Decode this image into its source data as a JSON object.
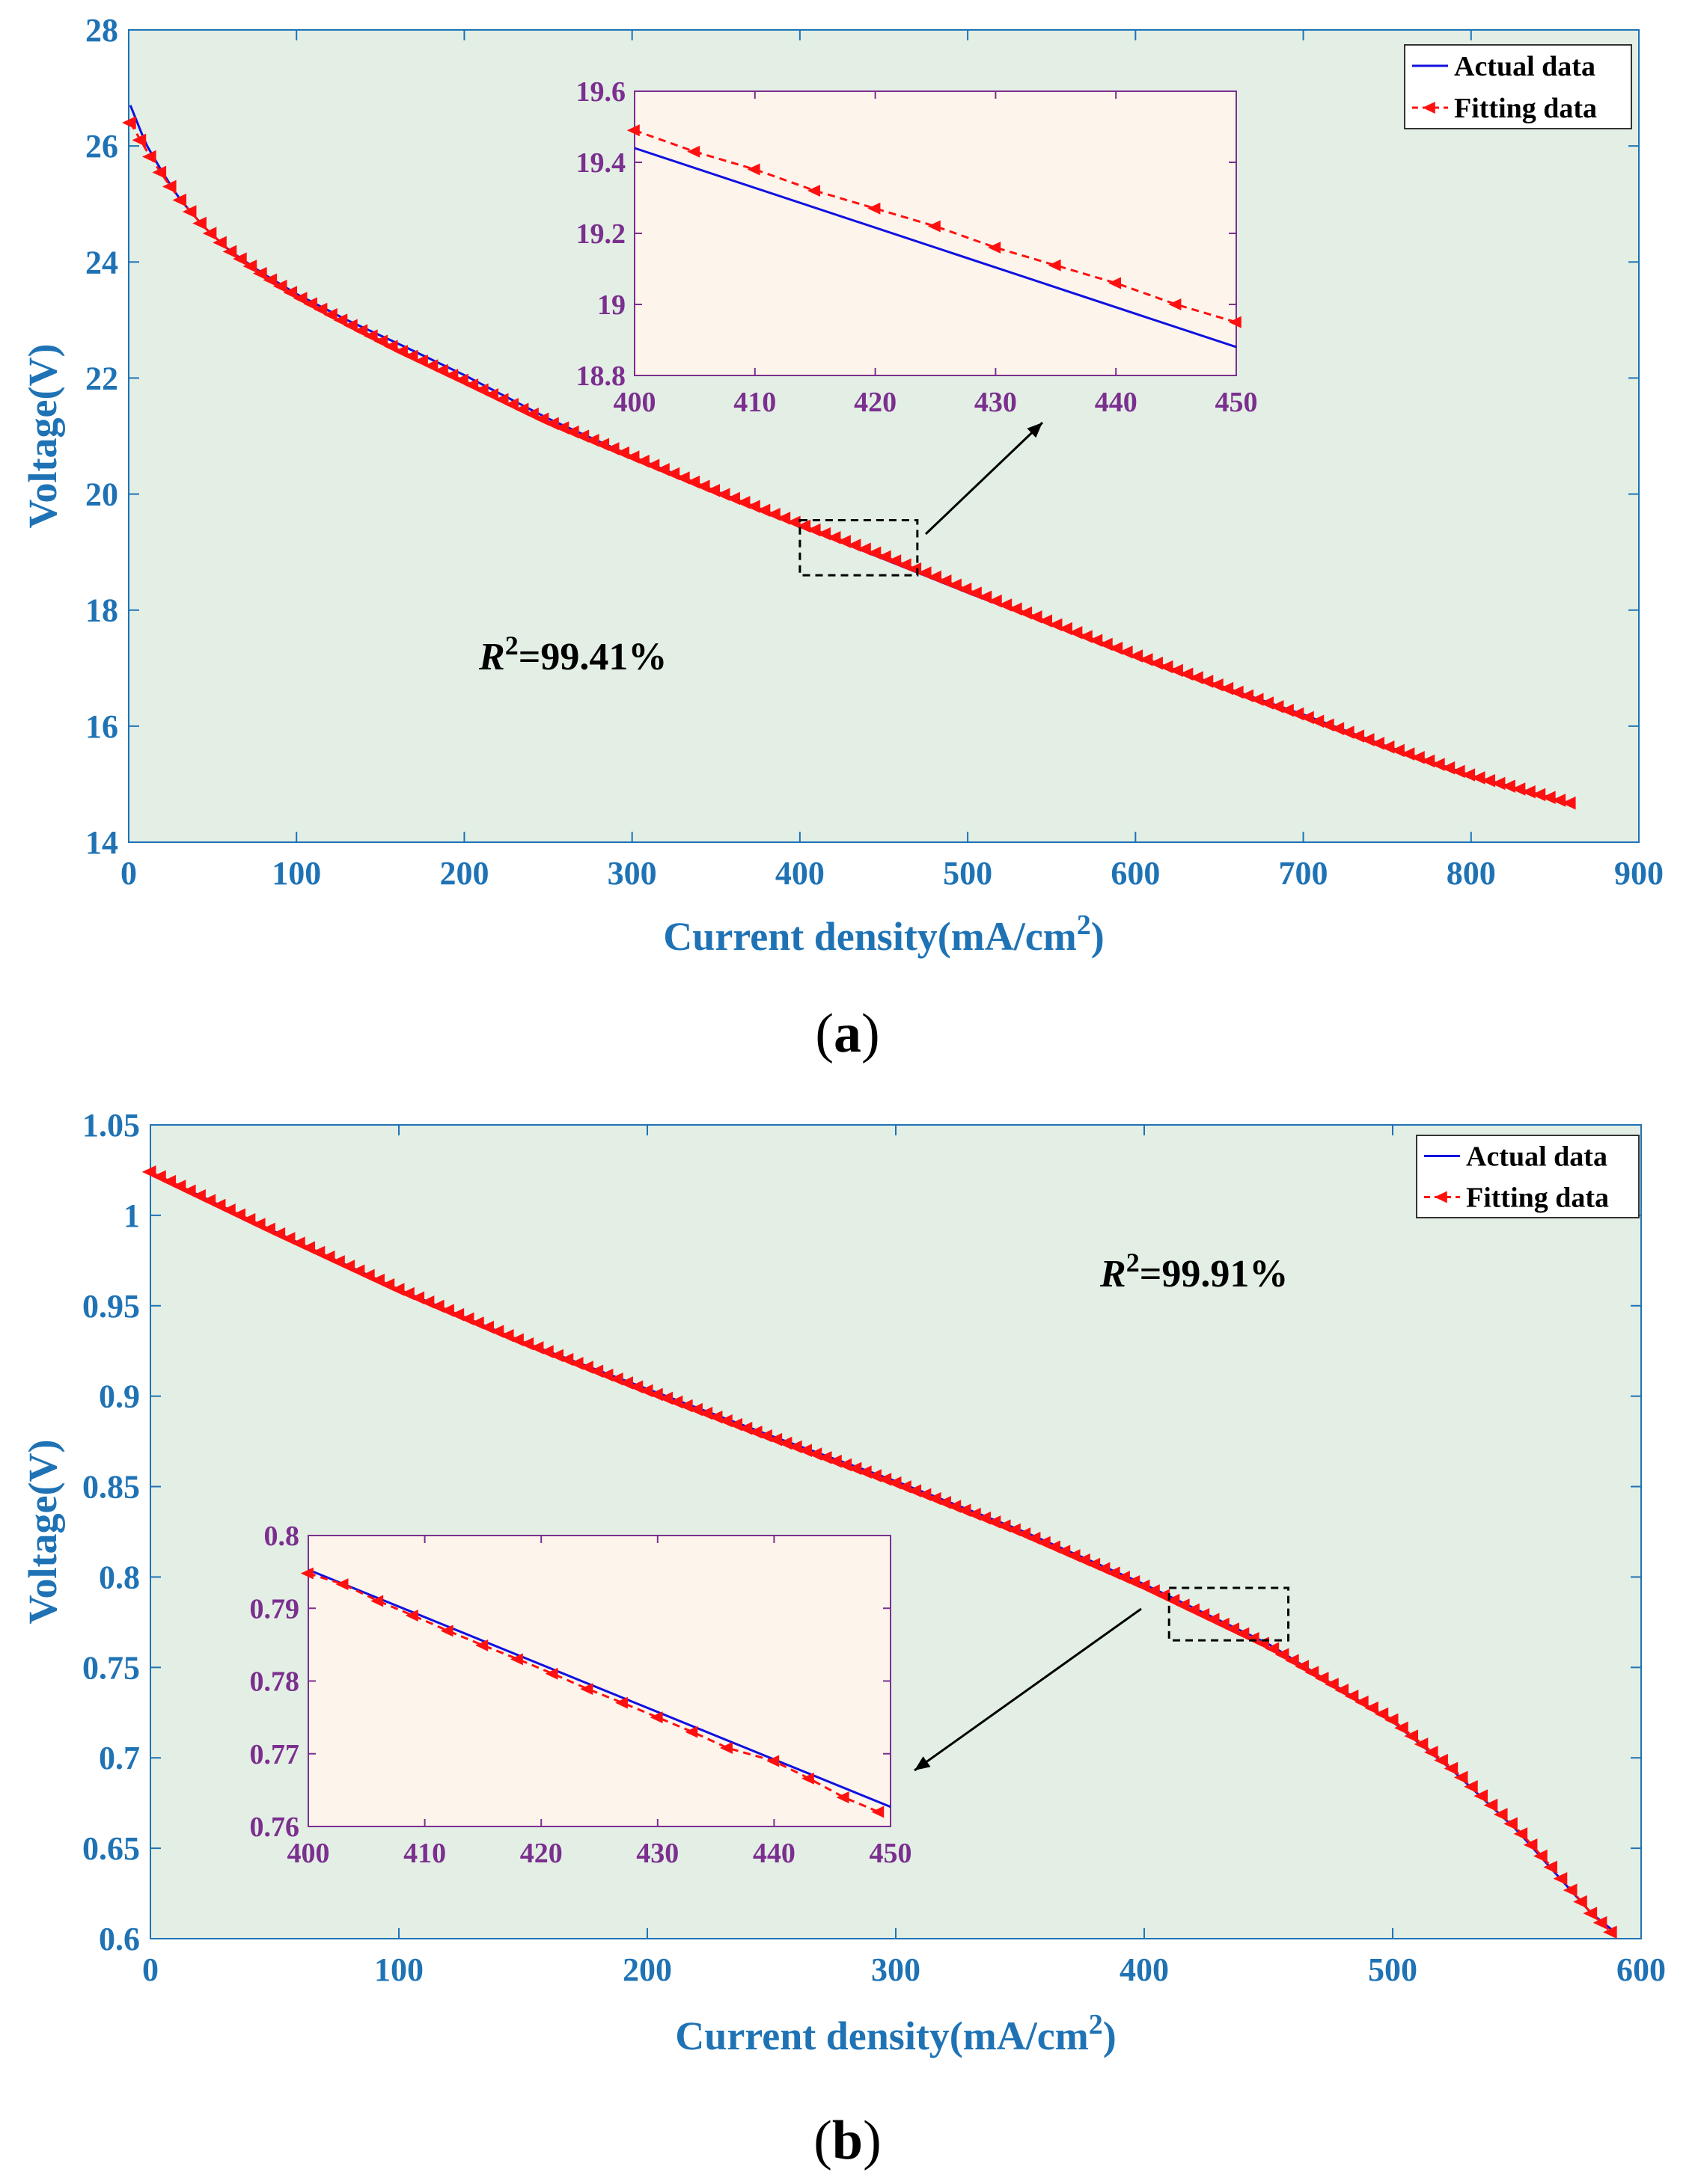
{
  "colors": {
    "axis_label": "#1f73b5",
    "main_bg": "#e3efe5",
    "inset_bg": "#fdf5ec",
    "inset_tick": "#7b2f8e",
    "inset_frame": "#7b2f8e",
    "actual": "#1010e0",
    "fitting": "#ff1010"
  },
  "captions": {
    "a": "a",
    "b": "b"
  },
  "chart_data": [
    {
      "id": "a",
      "type": "line",
      "xlabel": "Current density(mA/cm",
      "xlabel_sup": "2",
      "xlabel_end": ")",
      "ylabel": "Voltage(V)",
      "xlim": [
        0,
        900
      ],
      "ylim": [
        14,
        28
      ],
      "xticks": [
        "0",
        "100",
        "200",
        "300",
        "400",
        "500",
        "600",
        "700",
        "800",
        "900"
      ],
      "yticks": [
        "14",
        "16",
        "18",
        "20",
        "22",
        "24",
        "26",
        "28"
      ],
      "annotation": {
        "prefix": "R",
        "sup": "2",
        "text": "=99.41%"
      },
      "legend": {
        "placement": "top-right",
        "entries": [
          "Actual data",
          "Fitting data"
        ]
      },
      "series": [
        {
          "name": "Actual data",
          "style": "solid",
          "x": [
            1,
            10,
            20,
            30,
            45,
            60,
            80,
            100,
            130,
            160,
            200,
            250,
            300,
            350,
            400,
            450,
            500,
            550,
            600,
            650,
            700,
            750,
            800,
            862
          ],
          "y": [
            26.7,
            26.05,
            25.55,
            25.1,
            24.6,
            24.2,
            23.8,
            23.45,
            23.0,
            22.6,
            22.05,
            21.3,
            20.65,
            20.05,
            19.45,
            18.88,
            18.3,
            17.75,
            17.2,
            16.7,
            16.2,
            15.65,
            15.15,
            14.65
          ]
        },
        {
          "name": "Fitting data",
          "style": "dashed-triangle",
          "x": [
            1,
            10,
            20,
            30,
            45,
            60,
            80,
            100,
            130,
            160,
            200,
            250,
            300,
            350,
            400,
            450,
            500,
            550,
            600,
            650,
            700,
            750,
            800,
            862
          ],
          "y": [
            26.4,
            25.95,
            25.5,
            25.1,
            24.6,
            24.2,
            23.78,
            23.42,
            22.95,
            22.5,
            21.95,
            21.25,
            20.65,
            20.05,
            19.48,
            18.93,
            18.35,
            17.78,
            17.22,
            16.7,
            16.18,
            15.65,
            15.15,
            14.65
          ]
        }
      ],
      "zoom_box": {
        "x": [
          400,
          470
        ],
        "y": [
          18.6,
          19.55
        ]
      },
      "inset": {
        "xlim": [
          400,
          450
        ],
        "ylim": [
          18.8,
          19.6
        ],
        "xticks": [
          "400",
          "410",
          "420",
          "430",
          "440",
          "450"
        ],
        "yticks": [
          "18.8",
          "19",
          "19.2",
          "19.4",
          "19.6"
        ],
        "series": [
          {
            "name": "Actual data",
            "x": [
              400,
              450
            ],
            "y": [
              19.44,
              18.88
            ]
          },
          {
            "name": "Fitting data",
            "x": [
              400,
              405,
              410,
              415,
              420,
              425,
              430,
              435,
              440,
              445,
              450
            ],
            "y": [
              19.49,
              19.43,
              19.38,
              19.32,
              19.27,
              19.22,
              19.16,
              19.11,
              19.06,
              19.0,
              18.95
            ]
          }
        ]
      }
    },
    {
      "id": "b",
      "type": "line",
      "xlabel": "Current density(mA/cm",
      "xlabel_sup": "2",
      "xlabel_end": ")",
      "ylabel": "Voltage(V)",
      "xlim": [
        0,
        600
      ],
      "ylim": [
        0.6,
        1.05
      ],
      "xticks": [
        "0",
        "100",
        "200",
        "300",
        "400",
        "500",
        "600"
      ],
      "yticks": [
        "0.6",
        "0.65",
        "0.7",
        "0.75",
        "0.8",
        "0.85",
        "0.9",
        "0.95",
        "1",
        "1.05"
      ],
      "annotation": {
        "prefix": "R",
        "sup": "2",
        "text": "=99.91%"
      },
      "legend": {
        "placement": "top-right",
        "entries": [
          "Actual data",
          "Fitting data"
        ]
      },
      "series": [
        {
          "name": "Actual data",
          "style": "solid",
          "x": [
            0,
            50,
            100,
            150,
            200,
            250,
            300,
            350,
            400,
            450,
            500,
            525,
            550,
            565,
            580,
            590
          ],
          "y": [
            1.024,
            0.991,
            0.959,
            0.93,
            0.904,
            0.878,
            0.853,
            0.826,
            0.796,
            0.763,
            0.72,
            0.692,
            0.66,
            0.637,
            0.614,
            0.603
          ]
        },
        {
          "name": "Fitting data",
          "style": "dashed-triangle",
          "x": [
            0,
            50,
            100,
            150,
            200,
            250,
            300,
            350,
            400,
            450,
            500,
            525,
            550,
            565,
            580,
            590
          ],
          "y": [
            1.024,
            0.991,
            0.959,
            0.93,
            0.903,
            0.877,
            0.852,
            0.825,
            0.795,
            0.762,
            0.721,
            0.693,
            0.661,
            0.638,
            0.614,
            0.601
          ]
        }
      ],
      "zoom_box": {
        "x": [
          410,
          458
        ],
        "y": [
          0.765,
          0.794
        ]
      },
      "inset": {
        "xlim": [
          400,
          450
        ],
        "ylim": [
          0.76,
          0.8
        ],
        "xticks": [
          "400",
          "410",
          "420",
          "430",
          "440",
          "450"
        ],
        "yticks": [
          "0.76",
          "0.77",
          "0.78",
          "0.79",
          "0.8"
        ],
        "series": [
          {
            "name": "Actual data",
            "x": [
              400,
              450
            ],
            "y": [
              0.7953,
              0.7627
            ]
          },
          {
            "name": "Fitting data",
            "x": [
              400,
              403,
              406,
              409,
              412,
              415,
              418,
              421,
              424,
              427,
              430,
              433,
              436,
              440,
              443,
              446,
              449
            ],
            "y": [
              0.7948,
              0.7933,
              0.791,
              0.789,
              0.7869,
              0.7849,
              0.783,
              0.781,
              0.7789,
              0.777,
              0.775,
              0.773,
              0.7708,
              0.769,
              0.7666,
              0.764,
              0.762
            ]
          }
        ]
      }
    }
  ]
}
